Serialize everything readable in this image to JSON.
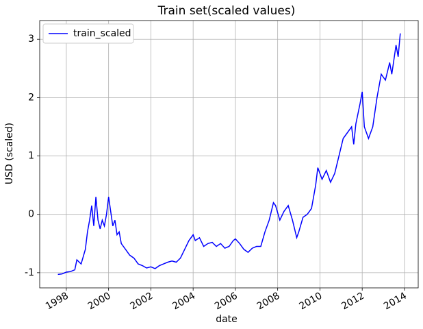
{
  "chart_data": {
    "type": "line",
    "title": "Train set(scaled values)",
    "x_label": "date",
    "y_label": "USD (scaled)",
    "x": [
      1997.6,
      1997.8,
      1998.0,
      1998.2,
      1998.4,
      1998.5,
      1998.7,
      1998.9,
      1999.0,
      1999.1,
      1999.2,
      1999.3,
      1999.4,
      1999.5,
      1999.6,
      1999.7,
      1999.8,
      1999.9,
      2000.0,
      2000.1,
      2000.2,
      2000.3,
      2000.4,
      2000.5,
      2000.6,
      2000.8,
      2001.0,
      2001.2,
      2001.4,
      2001.6,
      2001.8,
      2002.0,
      2002.2,
      2002.4,
      2002.6,
      2002.8,
      2003.0,
      2003.2,
      2003.4,
      2003.6,
      2003.8,
      2004.0,
      2004.1,
      2004.3,
      2004.5,
      2004.7,
      2004.9,
      2005.1,
      2005.3,
      2005.5,
      2005.7,
      2005.9,
      2006.0,
      2006.2,
      2006.4,
      2006.6,
      2006.8,
      2007.0,
      2007.2,
      2007.4,
      2007.6,
      2007.8,
      2007.9,
      2008.1,
      2008.3,
      2008.5,
      2008.7,
      2008.9,
      2009.0,
      2009.2,
      2009.4,
      2009.6,
      2009.8,
      2009.9,
      2010.1,
      2010.3,
      2010.5,
      2010.7,
      2010.9,
      2011.1,
      2011.3,
      2011.5,
      2011.6,
      2011.7,
      2011.9,
      2012.0,
      2012.1,
      2012.3,
      2012.5,
      2012.7,
      2012.9,
      2013.1,
      2013.3,
      2013.4,
      2013.6,
      2013.7,
      2013.8
    ],
    "series": [
      {
        "name": "train_scaled",
        "color": "#0000ff",
        "values": [
          -1.03,
          -1.02,
          -0.99,
          -0.98,
          -0.95,
          -0.78,
          -0.85,
          -0.6,
          -0.3,
          -0.1,
          0.15,
          -0.2,
          0.3,
          -0.1,
          -0.25,
          -0.1,
          -0.2,
          0.0,
          0.3,
          0.05,
          -0.2,
          -0.1,
          -0.35,
          -0.3,
          -0.5,
          -0.6,
          -0.7,
          -0.75,
          -0.85,
          -0.88,
          -0.92,
          -0.9,
          -0.93,
          -0.88,
          -0.85,
          -0.82,
          -0.8,
          -0.82,
          -0.75,
          -0.6,
          -0.45,
          -0.35,
          -0.45,
          -0.4,
          -0.55,
          -0.5,
          -0.48,
          -0.55,
          -0.5,
          -0.58,
          -0.55,
          -0.45,
          -0.42,
          -0.5,
          -0.6,
          -0.65,
          -0.58,
          -0.55,
          -0.55,
          -0.3,
          -0.1,
          0.2,
          0.15,
          -0.1,
          0.05,
          0.15,
          -0.1,
          -0.4,
          -0.3,
          -0.05,
          0.0,
          0.1,
          0.5,
          0.8,
          0.6,
          0.75,
          0.55,
          0.7,
          1.0,
          1.3,
          1.4,
          1.5,
          1.2,
          1.55,
          1.9,
          2.1,
          1.5,
          1.3,
          1.5,
          2.0,
          2.4,
          2.3,
          2.6,
          2.4,
          2.9,
          2.7,
          3.1
        ]
      }
    ],
    "xlim": [
      1996.74,
      2014.65
    ],
    "xticks": [
      1998,
      2000,
      2002,
      2004,
      2006,
      2008,
      2010,
      2012,
      2014
    ],
    "ylim": [
      -1.26,
      3.32
    ],
    "yticks": [
      -1,
      0,
      1,
      2,
      3
    ],
    "grid": true,
    "legend": "upper left"
  }
}
